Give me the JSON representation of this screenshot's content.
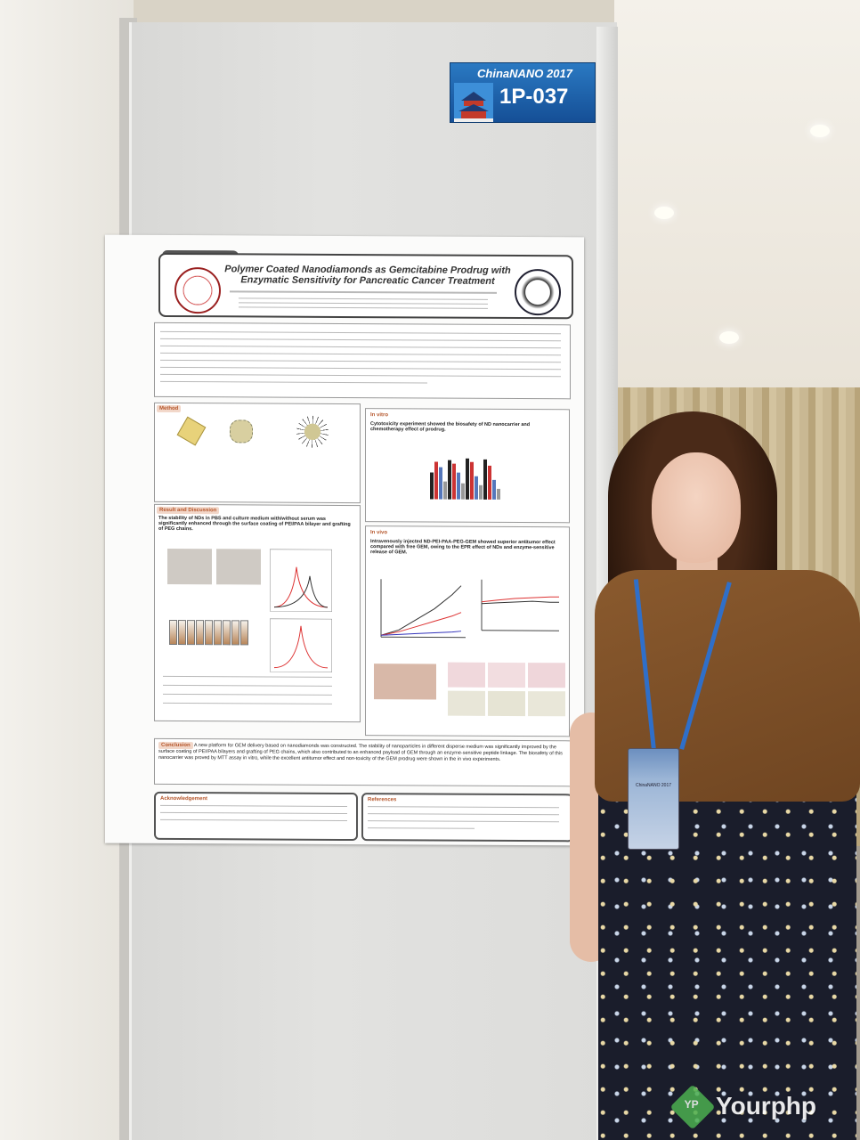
{
  "board": {
    "conference": "ChinaNANO 2017",
    "poster_code": "1P-037"
  },
  "poster": {
    "tab": "ChinaNano 2017",
    "title": "Polymer Coated Nanodiamonds as Gemcitabine Prodrug with Enzymatic Sensitivity for Pancreatic Cancer Treatment",
    "sections": {
      "methods": "Method",
      "in_vitro": "In vitro",
      "in_vitro_text": "Cytotoxicity experiment showed the biosafety of ND nanocarrier and chemotherapy effect of prodrug.",
      "results": "Result and Discussion",
      "results_text": "The stability of NDs in PBS and culture medium with/without serum was significantly enhanced through the surface coating of PEI/PAA bilayer and grafting of PEG chains.",
      "in_vivo": "In vivo",
      "in_vivo_text": "Intravenously injected ND-PEI-PAA-PEG-GEM showed superior antitumor effect compared with free GEM, owing to the EPR effect of NDs and enzyme-sensitive release of GEM.",
      "conclusion": "Conclusion",
      "conclusion_text": "A new platform for GEM delivery based on nanodiamonds was constructed. The stability of nanoparticles in different disperse medium was significantly improved by the surface coating of PEI/PAA bilayers and grafting of PEG chains, which also contributed to an enhanced payload of GEM through an enzyme-sensitive peptide linkage. The biosafety of this nanocarrier was proved by MTT assay in vitro, while the excellent antitumor effect and non-toxicity of the GEM prodrug were shown in the in vivo experiments.",
      "acknowledgement": "Acknowledgement",
      "references": "References"
    }
  },
  "watermark": {
    "icon_text": "YP",
    "text": "Yourphp"
  }
}
